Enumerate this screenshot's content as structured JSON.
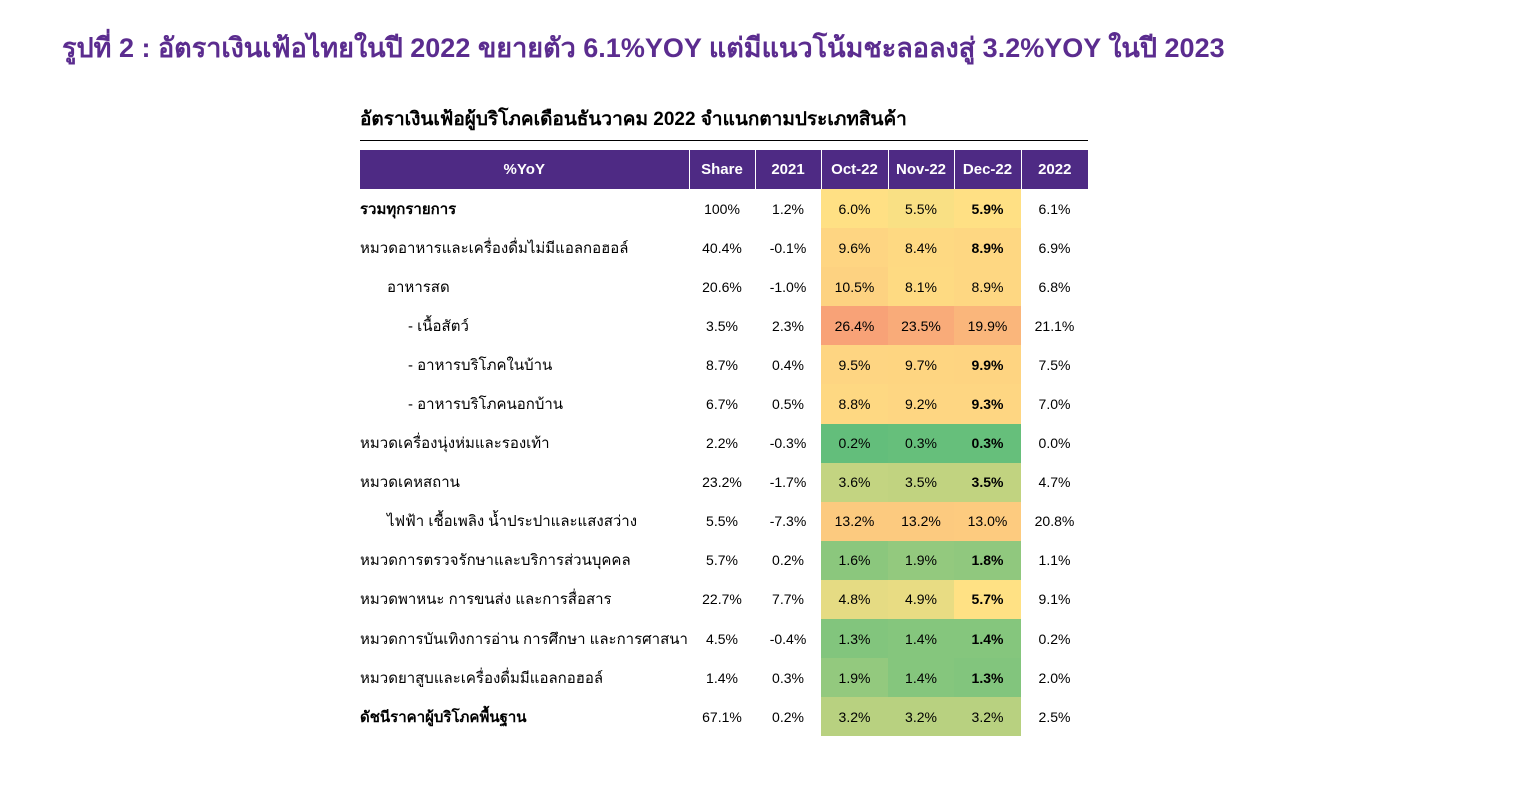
{
  "page_title": "รูปที่ 2 : อัตราเงินเฟ้อไทยในปี 2022 ขยายตัว 6.1%YOY แต่มีแนวโน้มชะลอลงสู่ 3.2%YOY ในปี 2023",
  "colors": {
    "title_purple": "#5B2C8F",
    "header_bg": "#4E2A84",
    "heat_low": "#63BE7B",
    "heat_mid": "#FFE184",
    "heat_high": "#F8A277"
  },
  "chart_data": {
    "type": "table",
    "title": "อัตราเงินเฟ้อผู้บริโภคเดือนธันวาคม 2022 จำแนกตามประเภทสินค้า",
    "columns": [
      "%YoY",
      "Share",
      "2021",
      "Oct-22",
      "Nov-22",
      "Dec-22",
      "2022"
    ],
    "rows": [
      {
        "label": "รวมทุกรายการ",
        "level": 0,
        "bold": true,
        "share": "100%",
        "y2021": "1.2%",
        "oct": "6.0%",
        "nov": "5.5%",
        "dec": "5.9%",
        "dec_bold": true,
        "y2022": "6.1%"
      },
      {
        "label": "หมวดอาหารและเครื่องดื่มไม่มีแอลกอฮอล์",
        "level": 0,
        "bold": false,
        "share": "40.4%",
        "y2021": "-0.1%",
        "oct": "9.6%",
        "nov": "8.4%",
        "dec": "8.9%",
        "dec_bold": true,
        "y2022": "6.9%"
      },
      {
        "label": "อาหารสด",
        "level": 1,
        "bold": false,
        "share": "20.6%",
        "y2021": "-1.0%",
        "oct": "10.5%",
        "nov": "8.1%",
        "dec": "8.9%",
        "dec_bold": false,
        "y2022": "6.8%"
      },
      {
        "label": "- เนื้อสัตว์",
        "level": 2,
        "bold": false,
        "share": "3.5%",
        "y2021": "2.3%",
        "oct": "26.4%",
        "nov": "23.5%",
        "dec": "19.9%",
        "dec_bold": false,
        "y2022": "21.1%"
      },
      {
        "label": "- อาหารบริโภคในบ้าน",
        "level": 2,
        "bold": false,
        "share": "8.7%",
        "y2021": "0.4%",
        "oct": "9.5%",
        "nov": "9.7%",
        "dec": "9.9%",
        "dec_bold": true,
        "y2022": "7.5%"
      },
      {
        "label": "- อาหารบริโภคนอกบ้าน",
        "level": 2,
        "bold": false,
        "share": "6.7%",
        "y2021": "0.5%",
        "oct": "8.8%",
        "nov": "9.2%",
        "dec": "9.3%",
        "dec_bold": true,
        "y2022": "7.0%"
      },
      {
        "label": "หมวดเครื่องนุ่งห่มและรองเท้า",
        "level": 0,
        "bold": false,
        "share": "2.2%",
        "y2021": "-0.3%",
        "oct": "0.2%",
        "nov": "0.3%",
        "dec": "0.3%",
        "dec_bold": true,
        "y2022": "0.0%"
      },
      {
        "label": "หมวดเคหสถาน",
        "level": 0,
        "bold": false,
        "share": "23.2%",
        "y2021": "-1.7%",
        "oct": "3.6%",
        "nov": "3.5%",
        "dec": "3.5%",
        "dec_bold": true,
        "y2022": "4.7%"
      },
      {
        "label": "ไฟฟ้า เชื้อเพลิง น้ำประปาและแสงสว่าง",
        "level": 1,
        "bold": false,
        "share": "5.5%",
        "y2021": "-7.3%",
        "oct": "13.2%",
        "nov": "13.2%",
        "dec": "13.0%",
        "dec_bold": false,
        "y2022": "20.8%"
      },
      {
        "label": "หมวดการตรวจรักษาและบริการส่วนบุคคล",
        "level": 0,
        "bold": false,
        "share": "5.7%",
        "y2021": "0.2%",
        "oct": "1.6%",
        "nov": "1.9%",
        "dec": "1.8%",
        "dec_bold": true,
        "y2022": "1.1%"
      },
      {
        "label": "หมวดพาหนะ การขนส่ง และการสื่อสาร",
        "level": 0,
        "bold": false,
        "share": "22.7%",
        "y2021": "7.7%",
        "oct": "4.8%",
        "nov": "4.9%",
        "dec": "5.7%",
        "dec_bold": true,
        "y2022": "9.1%"
      },
      {
        "label": "หมวดการบันเทิงการอ่าน การศึกษา และการศาสนา",
        "level": 0,
        "bold": false,
        "share": "4.5%",
        "y2021": "-0.4%",
        "oct": "1.3%",
        "nov": "1.4%",
        "dec": "1.4%",
        "dec_bold": true,
        "y2022": "0.2%"
      },
      {
        "label": "หมวดยาสูบและเครื่องดื่มมีแอลกอฮอล์",
        "level": 0,
        "bold": false,
        "share": "1.4%",
        "y2021": "0.3%",
        "oct": "1.9%",
        "nov": "1.4%",
        "dec": "1.3%",
        "dec_bold": true,
        "y2022": "2.0%"
      },
      {
        "label": "ดัชนีราคาผู้บริโภคพื้นฐาน",
        "level": 0,
        "bold": true,
        "share": "67.1%",
        "y2021": "0.2%",
        "oct": "3.2%",
        "nov": "3.2%",
        "dec": "3.2%",
        "dec_bold": false,
        "y2022": "2.5%"
      }
    ]
  }
}
